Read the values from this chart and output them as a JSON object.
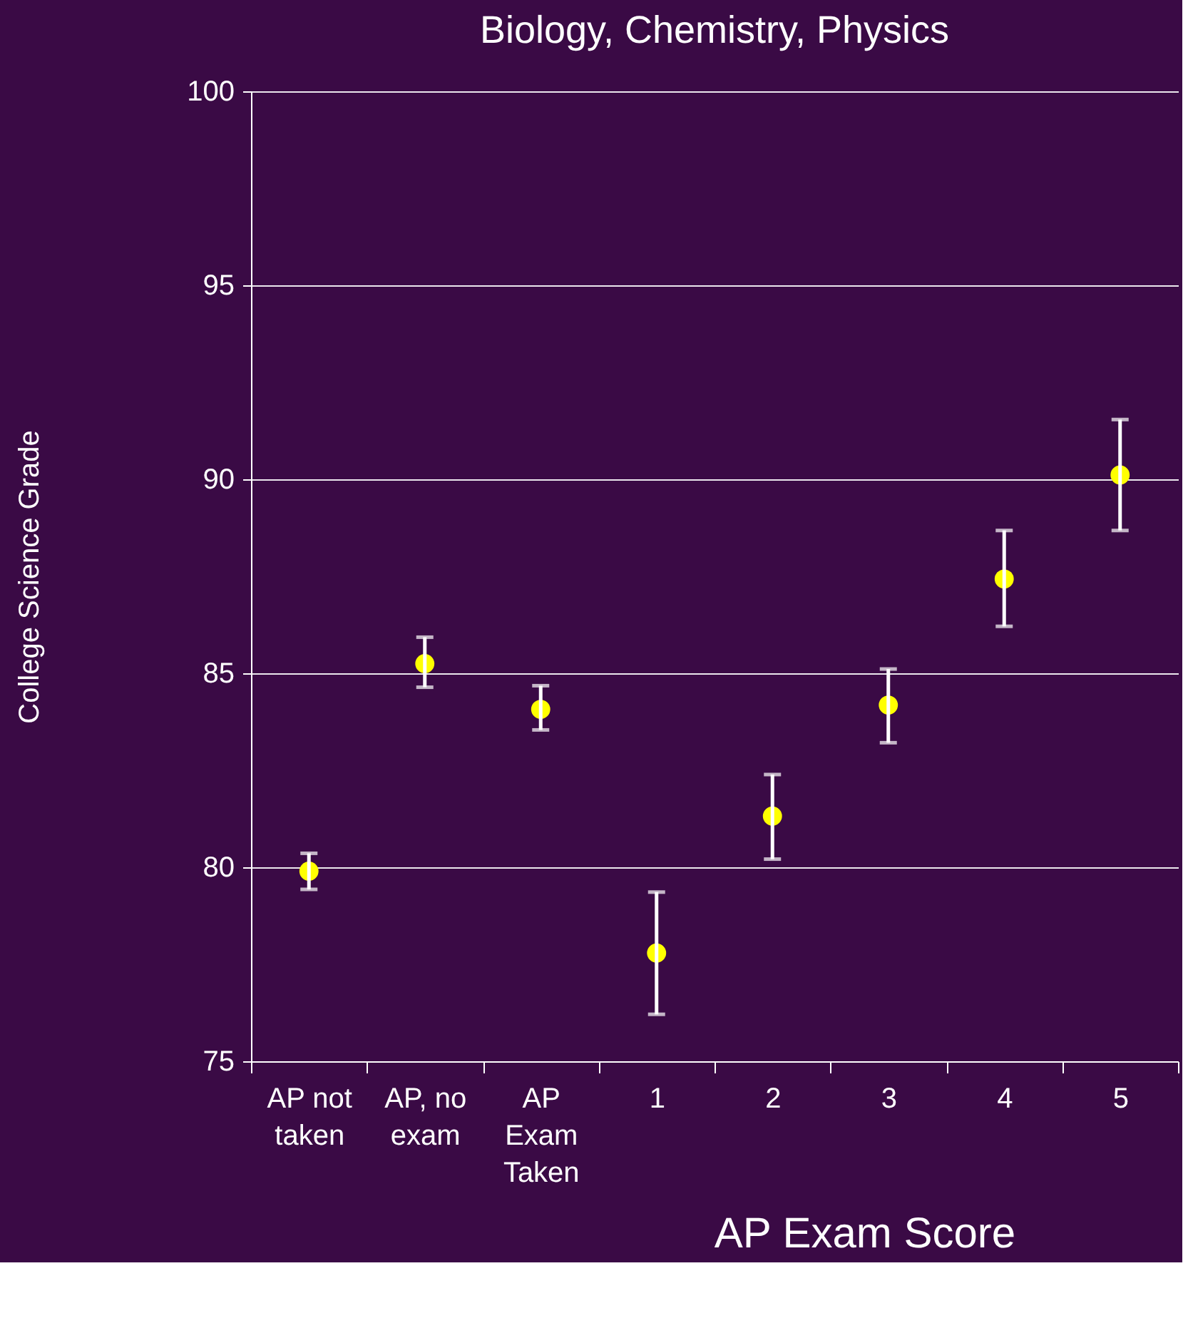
{
  "chart_data": {
    "type": "scatter",
    "title": "Biology, Chemistry, Physics",
    "xlabel": "AP Exam Score",
    "ylabel": "College Science Grade",
    "categories": [
      "AP not\ntaken",
      "AP, no\nexam",
      "AP\nExam\nTaken",
      "1",
      "2",
      "3",
      "4",
      "5"
    ],
    "series": [
      {
        "color": "#ffff00",
        "values": [
          79.9,
          85.25,
          84.07,
          77.79,
          81.32,
          84.18,
          87.43,
          90.11
        ],
        "errors": [
          [
            79.43,
            80.36
          ],
          [
            84.64,
            85.93
          ],
          [
            83.54,
            84.68
          ],
          [
            76.21,
            79.36
          ],
          [
            80.21,
            82.39
          ],
          [
            83.21,
            85.11
          ],
          [
            86.21,
            88.68
          ],
          [
            88.68,
            91.54
          ]
        ]
      }
    ],
    "ylim": [
      75,
      100
    ],
    "yticks": [
      75,
      80,
      85,
      90,
      95,
      100
    ],
    "grid": "y",
    "marker": "circle"
  }
}
